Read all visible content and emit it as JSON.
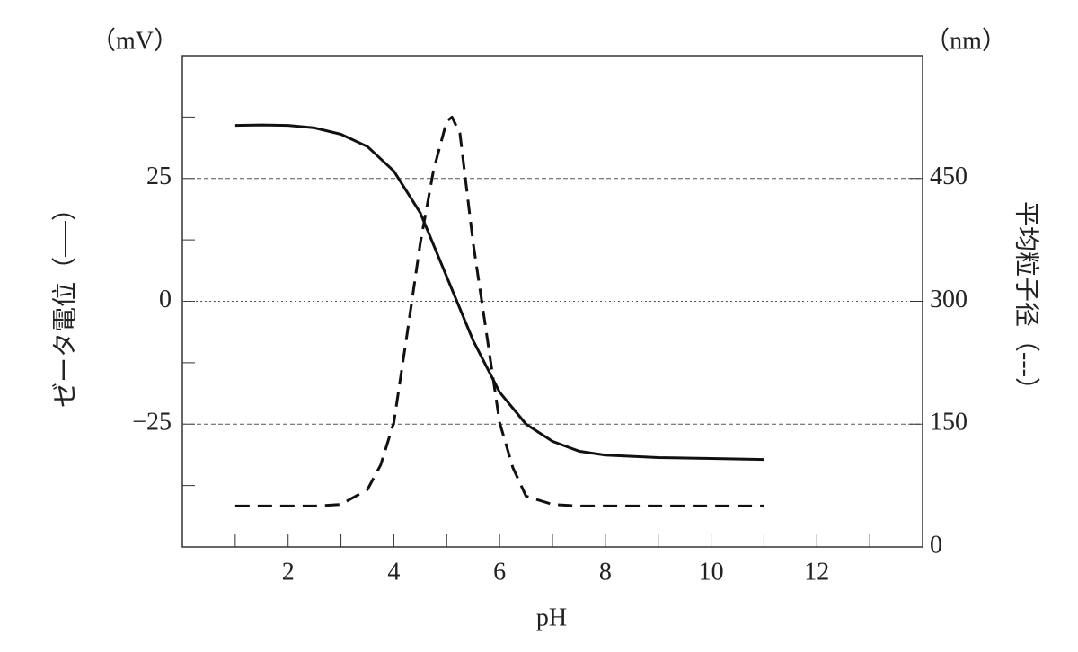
{
  "chart_data": {
    "type": "line",
    "x_label": "pH",
    "y_label": "ゼータ電位（──）",
    "y2_label": "平均粒子径（---）",
    "y_unit": "（mV）",
    "y2_unit": "（nm）",
    "xlim": [
      0,
      14
    ],
    "xticks": [
      2,
      4,
      6,
      8,
      10,
      12
    ],
    "minor_xticks": [
      1,
      3,
      5,
      7,
      9,
      11,
      13
    ],
    "ylim": [
      -50,
      50
    ],
    "yticks": [
      {
        "value": -25,
        "label": "−25"
      },
      0,
      25
    ],
    "minor_yticks": [
      -37.5,
      -12.5,
      12.5,
      37.5
    ],
    "y2lim": [
      0,
      600
    ],
    "y2ticks": [
      0,
      150,
      300,
      450
    ],
    "grid": true,
    "series": [
      {
        "color": "#111111",
        "dash": "solid",
        "x": [
          1,
          1.5,
          2,
          2.5,
          3,
          3.5,
          4,
          4.5,
          5,
          5.5,
          6,
          6.5,
          7,
          7.5,
          8,
          9,
          10,
          11
        ],
        "values": [
          35.8,
          35.9,
          35.8,
          35.3,
          34.0,
          31.5,
          26.5,
          18,
          5,
          -8,
          -18.5,
          -25,
          -28.5,
          -30.5,
          -31.3,
          -31.8,
          -32,
          -32.2
        ]
      },
      {
        "color": "#111111",
        "dash": "dashed",
        "axis": "y2",
        "x": [
          1,
          2,
          2.5,
          3,
          3.5,
          3.75,
          4,
          4.25,
          4.5,
          4.75,
          5,
          5.1,
          5.25,
          5.5,
          5.75,
          6,
          6.25,
          6.5,
          7,
          7.5,
          11
        ],
        "values": [
          50,
          50,
          50,
          52,
          70,
          100,
          152,
          260,
          371,
          460,
          520,
          525,
          505,
          371,
          262,
          152,
          97,
          62,
          52,
          50,
          50
        ]
      }
    ]
  }
}
